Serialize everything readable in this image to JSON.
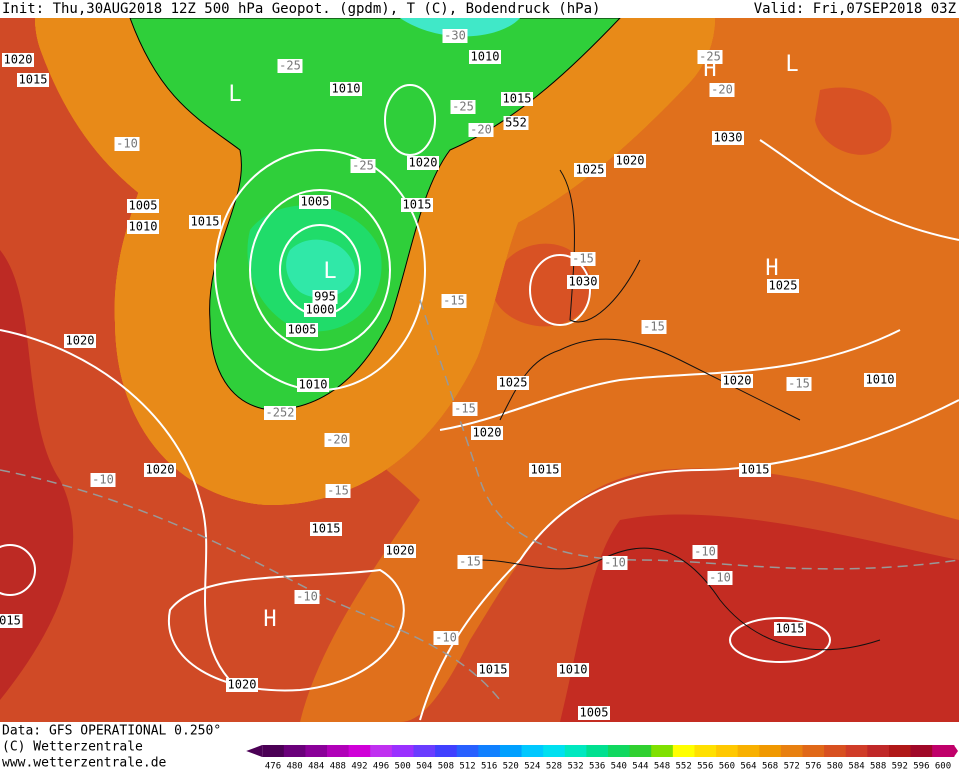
{
  "header": {
    "left": "Init: Thu,30AUG2018 12Z 500 hPa Geopot. (gpdm), T (C), Bodendruck (hPa)",
    "right": "Valid: Fri,07SEP2018 03Z"
  },
  "footer": {
    "data": "Data: GFS OPERATIONAL 0.250°",
    "copyright": "(C) Wetterzentrale",
    "url": "www.wetterzentrale.de"
  },
  "colorbar": {
    "levels": [
      476,
      480,
      484,
      488,
      492,
      496,
      500,
      504,
      508,
      512,
      516,
      520,
      524,
      528,
      532,
      536,
      540,
      544,
      548,
      552,
      556,
      560,
      564,
      568,
      572,
      576,
      580,
      584,
      588,
      592,
      596,
      600
    ],
    "colors": [
      "#4b0055",
      "#6a007a",
      "#8a0099",
      "#b000b8",
      "#d000d8",
      "#c030f0",
      "#9a30ff",
      "#6a3cff",
      "#4040ff",
      "#2860ff",
      "#1080ff",
      "#00a0ff",
      "#00c8ff",
      "#00e0f0",
      "#00e8c0",
      "#00e090",
      "#10d860",
      "#30d030",
      "#80e000",
      "#ffff00",
      "#ffe000",
      "#ffc800",
      "#f8b000",
      "#f09800",
      "#e88010",
      "#e06818",
      "#d85020",
      "#d03c28",
      "#c02828",
      "#b01818",
      "#a00828",
      "#c0006a"
    ]
  },
  "map_labels": [
    "1020",
    "1015",
    "L",
    "-25",
    "-30",
    "1010",
    "1010",
    "-25",
    "1015",
    "552",
    "-20",
    "-10",
    "1020",
    "-25",
    "1020",
    "1025",
    "1030",
    "1005",
    "1005",
    "1015",
    "1010",
    "1015",
    "L",
    "995",
    "1000",
    "1005",
    "-15",
    "-15",
    "1030",
    "H",
    "1025",
    "1020",
    "-15",
    "1010",
    "1025",
    "1020",
    "-15",
    "1010",
    "-252",
    "-15",
    "1020",
    "-20",
    "1020",
    "-10",
    "1015",
    "1015",
    "-15",
    "1015",
    "1020",
    "-10",
    "-15",
    "-10",
    "-10",
    "-10",
    "H",
    "015",
    "-10",
    "1015",
    "1015",
    "1010",
    "1020",
    "1005",
    "H",
    "L",
    "-20",
    "-25"
  ]
}
